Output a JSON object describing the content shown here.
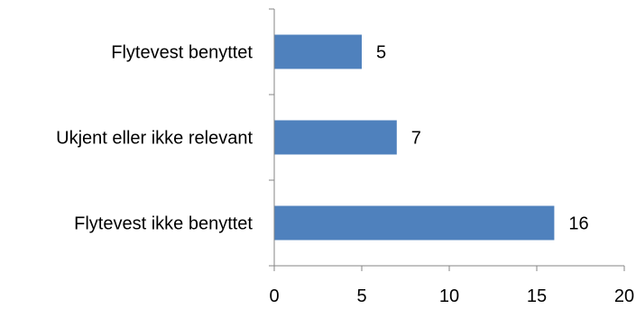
{
  "chart_data": {
    "type": "bar",
    "orientation": "horizontal",
    "categories": [
      "Flytevest ikke benyttet",
      "Ukjent eller ikke relevant",
      "Flytevest benyttet"
    ],
    "values": [
      16,
      7,
      5
    ],
    "data_labels": [
      "16",
      "7",
      "5"
    ],
    "title": "",
    "xlabel": "",
    "ylabel": "",
    "xlim": [
      0,
      20
    ],
    "x_ticks": [
      0,
      5,
      10,
      15,
      20
    ],
    "x_tick_labels": [
      "0",
      "5",
      "10",
      "15",
      "20"
    ],
    "grid": false,
    "legend": "none",
    "bar_color": "#4F81BD",
    "axis_color": "#868686"
  }
}
